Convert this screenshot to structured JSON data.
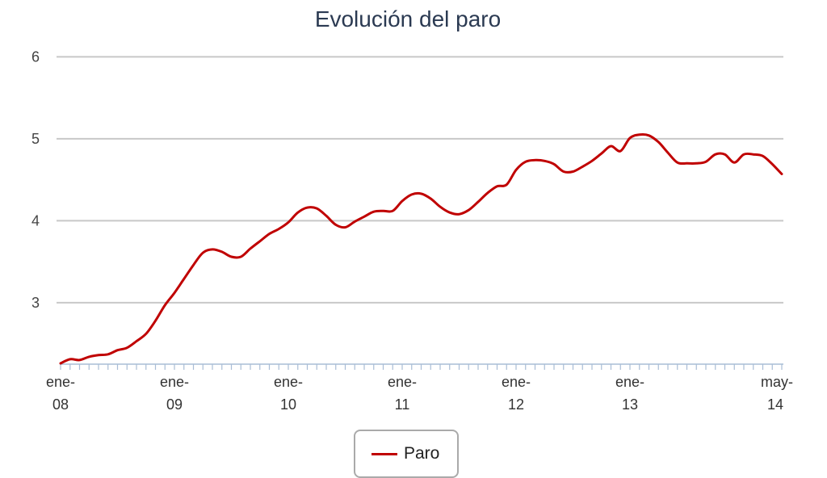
{
  "chart_data": {
    "type": "line",
    "title": "Evolución del paro",
    "xlabel": "",
    "ylabel": "",
    "ylim": [
      2.25,
      6
    ],
    "yticks": [
      3,
      4,
      5,
      6
    ],
    "grid": true,
    "legend_position": "bottom-center",
    "x_tick_labels": [
      {
        "month_index": 0,
        "line1": "ene-",
        "line2": "08"
      },
      {
        "month_index": 12,
        "line1": "ene-",
        "line2": "09"
      },
      {
        "month_index": 24,
        "line1": "ene-",
        "line2": "10"
      },
      {
        "month_index": 36,
        "line1": "ene-",
        "line2": "11"
      },
      {
        "month_index": 48,
        "line1": "ene-",
        "line2": "12"
      },
      {
        "month_index": 60,
        "line1": "ene-",
        "line2": "13"
      },
      {
        "month_index": 76,
        "line1": "may-",
        "line2": "14"
      }
    ],
    "series": [
      {
        "name": "Paro",
        "color": "#c00000",
        "values": [
          2.26,
          2.31,
          2.3,
          2.34,
          2.36,
          2.37,
          2.42,
          2.45,
          2.53,
          2.62,
          2.78,
          2.97,
          3.12,
          3.29,
          3.46,
          3.61,
          3.65,
          3.62,
          3.56,
          3.56,
          3.66,
          3.75,
          3.84,
          3.9,
          3.98,
          4.1,
          4.16,
          4.15,
          4.06,
          3.95,
          3.92,
          3.99,
          4.05,
          4.11,
          4.12,
          4.12,
          4.24,
          4.32,
          4.33,
          4.27,
          4.17,
          4.1,
          4.08,
          4.13,
          4.23,
          4.34,
          4.42,
          4.44,
          4.62,
          4.72,
          4.74,
          4.73,
          4.69,
          4.6,
          4.6,
          4.66,
          4.73,
          4.82,
          4.91,
          4.85,
          5.01,
          5.05,
          5.04,
          4.96,
          4.83,
          4.71,
          4.7,
          4.7,
          4.72,
          4.81,
          4.81,
          4.71,
          4.81,
          4.81,
          4.79,
          4.69,
          4.57
        ]
      }
    ]
  }
}
